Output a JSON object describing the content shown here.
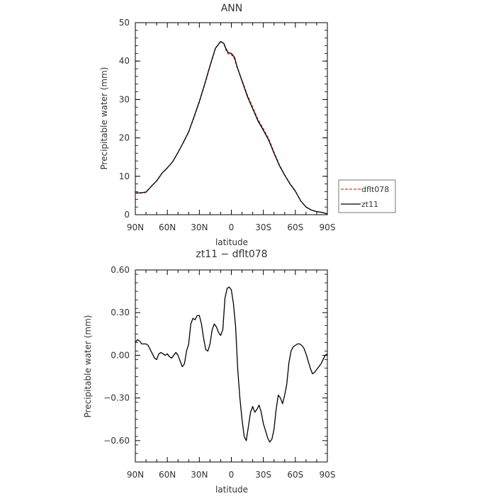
{
  "chart_data": [
    {
      "type": "line",
      "title": "ANN",
      "xlabel": "latitude",
      "ylabel": "Precipitable water (mm)",
      "xlim": [
        90,
        -90
      ],
      "ylim": [
        0,
        50
      ],
      "xticks": [
        {
          "value": 90,
          "label": "90N"
        },
        {
          "value": 60,
          "label": "60N"
        },
        {
          "value": 30,
          "label": "30N"
        },
        {
          "value": 0,
          "label": "0"
        },
        {
          "value": -30,
          "label": "30S"
        },
        {
          "value": -60,
          "label": "60S"
        },
        {
          "value": -90,
          "label": "90S"
        }
      ],
      "yticks": [
        0,
        10,
        20,
        30,
        40,
        50
      ],
      "legend": "right",
      "series": [
        {
          "name": "dflt078",
          "color": "#e0301e",
          "style": "dashed",
          "x": [
            90,
            85,
            80,
            75,
            70,
            65,
            60,
            55,
            50,
            45,
            40,
            35,
            30,
            25,
            20,
            15,
            10,
            7,
            5,
            3,
            0,
            -3,
            -5,
            -10,
            -15,
            -20,
            -25,
            -30,
            -35,
            -40,
            -45,
            -50,
            -55,
            -60,
            -65,
            -70,
            -75,
            -80,
            -85,
            -90
          ],
          "y": [
            5.6,
            5.6,
            5.8,
            7.4,
            8.8,
            10.8,
            12.2,
            13.8,
            16.2,
            18.8,
            21.5,
            25.3,
            29.3,
            33.8,
            38.6,
            43.2,
            45.2,
            44.5,
            42.8,
            41.9,
            41.7,
            40.6,
            38.6,
            35.0,
            31.2,
            28.0,
            24.8,
            22.4,
            19.8,
            16.3,
            13.0,
            10.4,
            8.1,
            6.2,
            3.6,
            2.0,
            1.2,
            0.8,
            0.6,
            0.2
          ]
        },
        {
          "name": "zt11",
          "color": "#000000",
          "style": "solid",
          "x": [
            90,
            85,
            80,
            75,
            70,
            65,
            60,
            55,
            50,
            45,
            40,
            35,
            30,
            25,
            20,
            15,
            10,
            7,
            5,
            3,
            0,
            -3,
            -5,
            -10,
            -15,
            -20,
            -25,
            -30,
            -35,
            -40,
            -45,
            -50,
            -55,
            -60,
            -65,
            -70,
            -75,
            -80,
            -85,
            -90
          ],
          "y": [
            5.7,
            5.7,
            5.9,
            7.4,
            8.8,
            10.8,
            12.2,
            13.8,
            16.2,
            18.8,
            21.6,
            25.5,
            29.5,
            34.0,
            38.8,
            43.3,
            45.1,
            44.6,
            43.2,
            42.2,
            42.0,
            41.0,
            38.9,
            34.8,
            30.8,
            27.6,
            24.4,
            22.0,
            19.4,
            16.0,
            12.8,
            10.3,
            8.0,
            6.1,
            3.6,
            2.0,
            1.2,
            0.8,
            0.6,
            0.2
          ]
        }
      ]
    },
    {
      "type": "line",
      "title": "zt11 − dflt078",
      "xlabel": "latitude",
      "ylabel": "Precipitable water (mm)",
      "xlim": [
        90,
        -90
      ],
      "ylim": [
        -0.75,
        0.6
      ],
      "xticks": [
        {
          "value": 90,
          "label": "90N"
        },
        {
          "value": 60,
          "label": "60N"
        },
        {
          "value": 30,
          "label": "30N"
        },
        {
          "value": 0,
          "label": "0"
        },
        {
          "value": -30,
          "label": "30S"
        },
        {
          "value": -60,
          "label": "60S"
        },
        {
          "value": -90,
          "label": "90S"
        }
      ],
      "yticks": [
        {
          "value": 0.6,
          "label": "0.60"
        },
        {
          "value": 0.3,
          "label": "0.30"
        },
        {
          "value": 0.0,
          "label": "0.00"
        },
        {
          "value": -0.3,
          "label": "−0.30"
        },
        {
          "value": -0.6,
          "label": "−0.60"
        }
      ],
      "series": [
        {
          "name": "",
          "color": "#000000",
          "style": "solid",
          "x": [
            90,
            88,
            86,
            84,
            82,
            80,
            78,
            76,
            74,
            72,
            70,
            68,
            66,
            64,
            62,
            60,
            58,
            56,
            54,
            52,
            50,
            48,
            46,
            44,
            42,
            40,
            38,
            36,
            34,
            32,
            30,
            28,
            26,
            24,
            22,
            20,
            18,
            16,
            14,
            12,
            10,
            8,
            6,
            4,
            2,
            0,
            -2,
            -4,
            -6,
            -8,
            -10,
            -12,
            -14,
            -16,
            -18,
            -20,
            -22,
            -24,
            -26,
            -28,
            -30,
            -32,
            -34,
            -36,
            -38,
            -40,
            -42,
            -44,
            -46,
            -48,
            -50,
            -52,
            -54,
            -56,
            -58,
            -60,
            -62,
            -64,
            -66,
            -68,
            -70,
            -72,
            -74,
            -76,
            -78,
            -80,
            -82,
            -84,
            -86,
            -88,
            -90
          ],
          "y": [
            0.09,
            0.11,
            0.1,
            0.08,
            0.08,
            0.08,
            0.07,
            0.04,
            0.01,
            -0.02,
            -0.03,
            0.01,
            0.02,
            0.01,
            0.0,
            0.01,
            -0.01,
            -0.02,
            0.0,
            0.02,
            0.0,
            -0.04,
            -0.08,
            -0.06,
            0.03,
            0.08,
            0.22,
            0.26,
            0.25,
            0.28,
            0.28,
            0.22,
            0.12,
            0.04,
            0.03,
            0.08,
            0.18,
            0.22,
            0.2,
            0.16,
            0.14,
            0.18,
            0.4,
            0.47,
            0.48,
            0.46,
            0.36,
            0.2,
            -0.1,
            -0.3,
            -0.45,
            -0.57,
            -0.6,
            -0.5,
            -0.4,
            -0.36,
            -0.4,
            -0.38,
            -0.35,
            -0.4,
            -0.48,
            -0.53,
            -0.58,
            -0.61,
            -0.59,
            -0.52,
            -0.38,
            -0.28,
            -0.3,
            -0.34,
            -0.28,
            -0.2,
            -0.05,
            0.03,
            0.06,
            0.07,
            0.08,
            0.08,
            0.07,
            0.05,
            0.01,
            -0.04,
            -0.09,
            -0.13,
            -0.12,
            -0.1,
            -0.08,
            -0.06,
            -0.03,
            0.0,
            0.01
          ]
        }
      ]
    }
  ]
}
